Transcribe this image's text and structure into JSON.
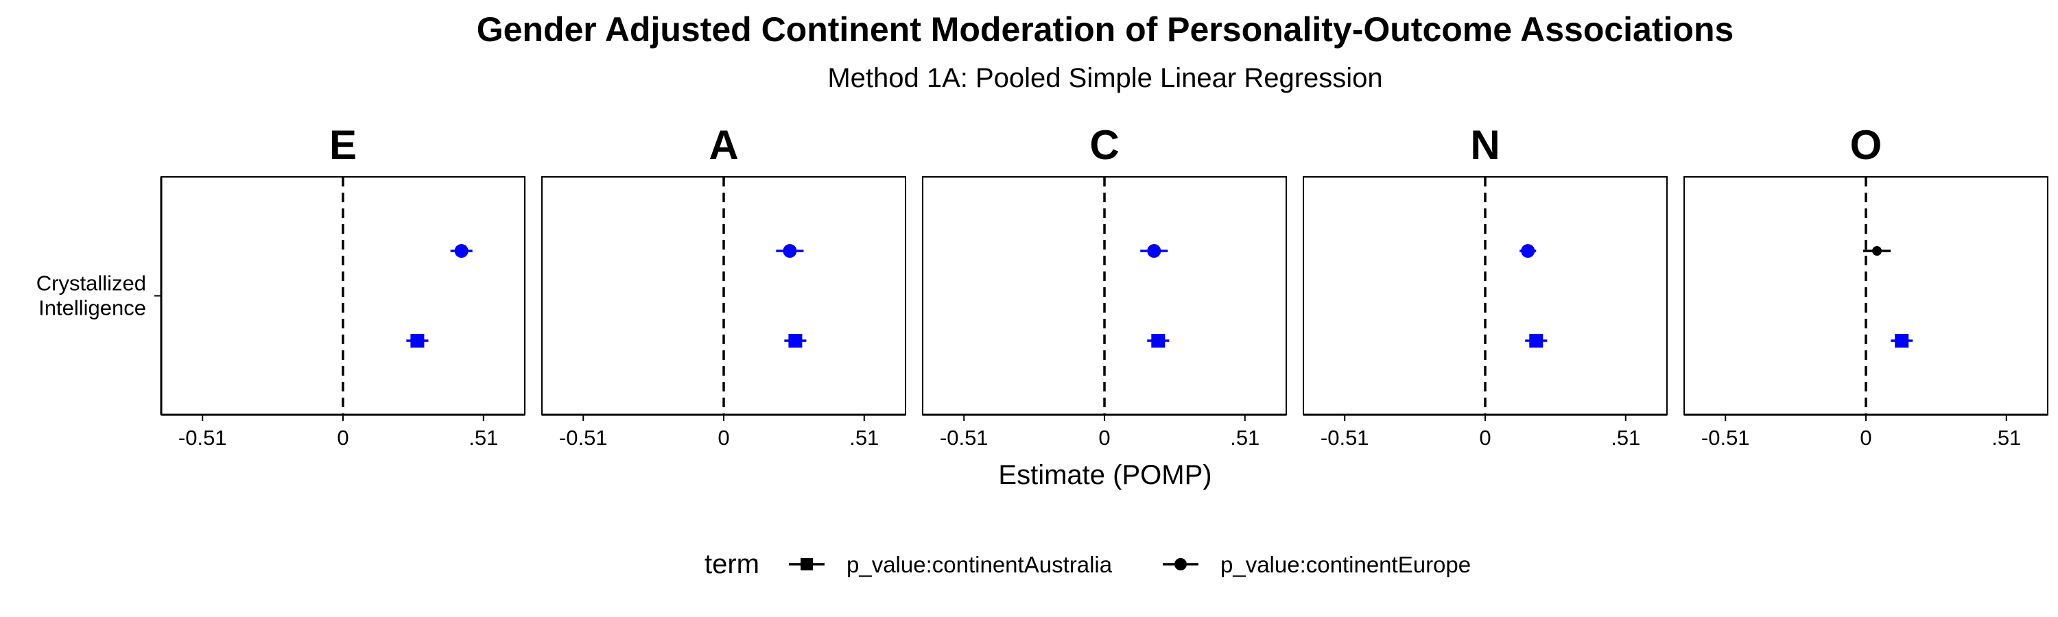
{
  "chart_data": {
    "type": "scatter",
    "title": "Gender Adjusted Continent Moderation of Personality-Outcome Associations",
    "subtitle": "Method 1A: Pooled Simple Linear Regression",
    "xlabel": "Estimate (POMP)",
    "ylabel": "",
    "x_ticks": [
      {
        "value": -0.51,
        "label": "-0.51"
      },
      {
        "value": 0,
        "label": "0"
      },
      {
        "value": 0.51,
        "label": ".51"
      }
    ],
    "xlim": [
      -0.66,
      0.66
    ],
    "y_categories": [
      "Crystallized\nIntelligence"
    ],
    "y_tick_lines": [
      "Crystallized",
      "Intelligence"
    ],
    "facets": [
      "E",
      "A",
      "C",
      "N",
      "O"
    ],
    "legend": {
      "title": "term",
      "position": "bottom",
      "entries": [
        {
          "label": "p_value:continentAustralia",
          "shape": "square"
        },
        {
          "label": "p_value:continentEurope",
          "shape": "circle"
        }
      ]
    },
    "significant_color": "#0000ff",
    "nonsignificant_color": "#000000",
    "series": [
      {
        "name": "p_value:continentEurope",
        "shape": "circle",
        "points": [
          {
            "facet": "E",
            "estimate": 0.43,
            "ci": [
              0.39,
              0.47
            ],
            "significant": true
          },
          {
            "facet": "A",
            "estimate": 0.24,
            "ci": [
              0.19,
              0.29
            ],
            "significant": true
          },
          {
            "facet": "C",
            "estimate": 0.18,
            "ci": [
              0.13,
              0.23
            ],
            "significant": true
          },
          {
            "facet": "N",
            "estimate": 0.155,
            "ci": [
              0.125,
              0.185
            ],
            "significant": true
          },
          {
            "facet": "O",
            "estimate": 0.04,
            "ci": [
              -0.01,
              0.09
            ],
            "significant": false
          }
        ]
      },
      {
        "name": "p_value:continentAustralia",
        "shape": "square",
        "points": [
          {
            "facet": "E",
            "estimate": 0.27,
            "ci": [
              0.23,
              0.31
            ],
            "significant": true
          },
          {
            "facet": "A",
            "estimate": 0.26,
            "ci": [
              0.22,
              0.3
            ],
            "significant": true
          },
          {
            "facet": "C",
            "estimate": 0.195,
            "ci": [
              0.155,
              0.235
            ],
            "significant": true
          },
          {
            "facet": "N",
            "estimate": 0.185,
            "ci": [
              0.145,
              0.225
            ],
            "significant": true
          },
          {
            "facet": "O",
            "estimate": 0.13,
            "ci": [
              0.09,
              0.17
            ],
            "significant": true
          }
        ]
      }
    ],
    "grid": false
  }
}
